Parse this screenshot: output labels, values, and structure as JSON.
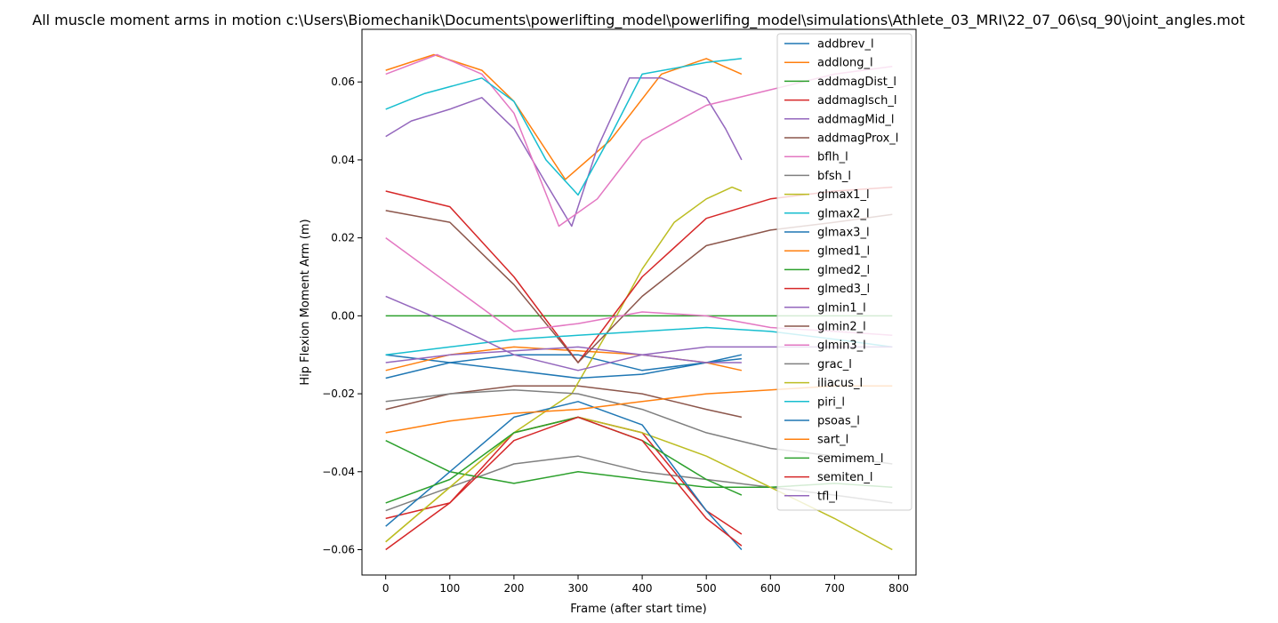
{
  "chart_data": {
    "type": "line",
    "title": "All muscle moment arms in motion c:\\Users\\Biomechanik\\Documents\\powerlifting_model\\powerlifing_model\\simulations\\Athlete_03_MRI\\22_07_06\\sq_90\\joint_angles.mot",
    "xlabel": "Frame (after start time)",
    "ylabel": "Hip Flexion Moment Arm (m)",
    "xlim": [
      -37,
      827
    ],
    "ylim": [
      -0.0665,
      0.0735
    ],
    "x_ticks": [
      "0",
      "100",
      "200",
      "300",
      "400",
      "500",
      "600",
      "700",
      "800"
    ],
    "y_ticks": [
      "−0.06",
      "−0.04",
      "−0.02",
      "0.00",
      "0.02",
      "0.04",
      "0.06"
    ],
    "legend_position": "upper-right",
    "series": [
      {
        "name": "addbrev_l",
        "color": "#1f77b4",
        "x": [
          0,
          100,
          200,
          300,
          400,
          500,
          555
        ],
        "y": [
          -0.016,
          -0.012,
          -0.01,
          -0.01,
          -0.014,
          -0.012,
          -0.011
        ]
      },
      {
        "name": "addlong_l",
        "color": "#ff7f0e",
        "x": [
          0,
          75,
          150,
          200,
          280,
          350,
          430,
          500,
          555
        ],
        "y": [
          0.063,
          0.067,
          0.063,
          0.055,
          0.035,
          0.045,
          0.062,
          0.066,
          0.062
        ]
      },
      {
        "name": "addmagDist_l",
        "color": "#2ca02c",
        "x": [
          0,
          790
        ],
        "y": [
          0.0,
          0.0
        ]
      },
      {
        "name": "addmagIsch_l",
        "color": "#d62728",
        "x": [
          0,
          100,
          200,
          300,
          400,
          500,
          555
        ],
        "y": [
          -0.052,
          -0.048,
          -0.03,
          -0.026,
          -0.03,
          -0.05,
          -0.056
        ]
      },
      {
        "name": "addmagMid_l",
        "color": "#9467bd",
        "x": [
          0,
          40,
          100,
          150,
          200,
          250,
          290,
          330,
          380,
          430,
          500,
          530,
          555
        ],
        "y": [
          0.046,
          0.05,
          0.053,
          0.056,
          0.048,
          0.034,
          0.023,
          0.043,
          0.061,
          0.061,
          0.056,
          0.048,
          0.04
        ]
      },
      {
        "name": "addmagProx_l",
        "color": "#8c564b",
        "x": [
          0,
          100,
          200,
          300,
          400,
          500,
          555
        ],
        "y": [
          -0.024,
          -0.02,
          -0.018,
          -0.018,
          -0.02,
          -0.024,
          -0.026
        ]
      },
      {
        "name": "bflh_l",
        "color": "#e377c2",
        "x": [
          0,
          80,
          150,
          200,
          270,
          330,
          400,
          500,
          600,
          700,
          790
        ],
        "y": [
          0.062,
          0.067,
          0.062,
          0.052,
          0.023,
          0.03,
          0.045,
          0.054,
          0.058,
          0.062,
          0.064
        ]
      },
      {
        "name": "bfsh_l",
        "color": "#7f7f7f",
        "x": [
          0,
          100,
          200,
          300,
          400,
          500,
          600,
          700,
          790
        ],
        "y": [
          -0.05,
          -0.044,
          -0.038,
          -0.036,
          -0.04,
          -0.042,
          -0.044,
          -0.046,
          -0.048
        ]
      },
      {
        "name": "glmax1_l",
        "color": "#bcbd22",
        "x": [
          0,
          100,
          200,
          290,
          350,
          400,
          450,
          500,
          540,
          555
        ],
        "y": [
          -0.058,
          -0.044,
          -0.03,
          -0.02,
          -0.003,
          0.012,
          0.024,
          0.03,
          0.033,
          0.032
        ]
      },
      {
        "name": "glmax2_l",
        "color": "#17becf",
        "x": [
          0,
          60,
          150,
          200,
          250,
          300,
          350,
          400,
          500,
          555
        ],
        "y": [
          0.053,
          0.057,
          0.061,
          0.055,
          0.04,
          0.031,
          0.046,
          0.062,
          0.065,
          0.066
        ]
      },
      {
        "name": "glmax3_l",
        "color": "#1f77b4",
        "x": [
          0,
          100,
          200,
          300,
          400,
          500,
          555
        ],
        "y": [
          -0.01,
          -0.012,
          -0.014,
          -0.016,
          -0.015,
          -0.012,
          -0.01
        ]
      },
      {
        "name": "glmed1_l",
        "color": "#ff7f0e",
        "x": [
          0,
          100,
          200,
          300,
          400,
          500,
          555
        ],
        "y": [
          -0.014,
          -0.01,
          -0.008,
          -0.009,
          -0.01,
          -0.012,
          -0.014
        ]
      },
      {
        "name": "glmed2_l",
        "color": "#2ca02c",
        "x": [
          0,
          100,
          200,
          300,
          400,
          500,
          600,
          700,
          790
        ],
        "y": [
          -0.032,
          -0.04,
          -0.043,
          -0.04,
          -0.042,
          -0.044,
          -0.044,
          -0.043,
          -0.044
        ]
      },
      {
        "name": "glmed3_l",
        "color": "#d62728",
        "x": [
          0,
          100,
          200,
          300,
          400,
          500,
          600,
          700,
          790
        ],
        "y": [
          0.032,
          0.028,
          0.01,
          -0.012,
          0.01,
          0.025,
          0.03,
          0.032,
          0.033
        ]
      },
      {
        "name": "glmin1_l",
        "color": "#9467bd",
        "x": [
          0,
          100,
          200,
          300,
          400,
          500,
          555
        ],
        "y": [
          -0.012,
          -0.01,
          -0.009,
          -0.008,
          -0.01,
          -0.012,
          -0.012
        ]
      },
      {
        "name": "glmin2_l",
        "color": "#8c564b",
        "x": [
          0,
          100,
          200,
          300,
          400,
          500,
          600,
          700,
          790
        ],
        "y": [
          0.027,
          0.024,
          0.008,
          -0.012,
          0.005,
          0.018,
          0.022,
          0.024,
          0.026
        ]
      },
      {
        "name": "glmin3_l",
        "color": "#e377c2",
        "x": [
          0,
          100,
          200,
          300,
          400,
          500,
          600,
          700,
          790
        ],
        "y": [
          0.02,
          0.008,
          -0.004,
          -0.002,
          0.001,
          0.0,
          -0.003,
          -0.004,
          -0.005
        ]
      },
      {
        "name": "grac_l",
        "color": "#7f7f7f",
        "x": [
          0,
          100,
          200,
          300,
          400,
          500,
          600,
          700,
          790
        ],
        "y": [
          -0.022,
          -0.02,
          -0.019,
          -0.02,
          -0.024,
          -0.03,
          -0.034,
          -0.036,
          -0.038
        ]
      },
      {
        "name": "iliacus_l",
        "color": "#bcbd22",
        "x": [
          0,
          100,
          200,
          300,
          400,
          500,
          600,
          700,
          790
        ],
        "y": [
          -0.058,
          -0.044,
          -0.03,
          -0.026,
          -0.03,
          -0.036,
          -0.044,
          -0.052,
          -0.06
        ]
      },
      {
        "name": "piri_l",
        "color": "#17becf",
        "x": [
          0,
          100,
          200,
          300,
          400,
          500,
          600,
          700,
          790
        ],
        "y": [
          -0.01,
          -0.008,
          -0.006,
          -0.005,
          -0.004,
          -0.003,
          -0.004,
          -0.006,
          -0.008
        ]
      },
      {
        "name": "psoas_l",
        "color": "#1f77b4",
        "x": [
          0,
          100,
          200,
          300,
          400,
          500,
          555
        ],
        "y": [
          -0.054,
          -0.04,
          -0.026,
          -0.022,
          -0.028,
          -0.05,
          -0.06
        ]
      },
      {
        "name": "sart_l",
        "color": "#ff7f0e",
        "x": [
          0,
          100,
          200,
          300,
          400,
          500,
          600,
          700,
          790
        ],
        "y": [
          -0.03,
          -0.027,
          -0.025,
          -0.024,
          -0.022,
          -0.02,
          -0.019,
          -0.018,
          -0.018
        ]
      },
      {
        "name": "semimem_l",
        "color": "#2ca02c",
        "x": [
          0,
          100,
          200,
          300,
          400,
          500,
          555
        ],
        "y": [
          -0.048,
          -0.042,
          -0.03,
          -0.026,
          -0.032,
          -0.042,
          -0.046
        ]
      },
      {
        "name": "semiten_l",
        "color": "#d62728",
        "x": [
          0,
          100,
          200,
          300,
          400,
          500,
          555
        ],
        "y": [
          -0.06,
          -0.048,
          -0.032,
          -0.026,
          -0.032,
          -0.052,
          -0.059
        ]
      },
      {
        "name": "tfl_l",
        "color": "#9467bd",
        "x": [
          0,
          100,
          200,
          300,
          400,
          500,
          600,
          700,
          790
        ],
        "y": [
          0.005,
          -0.002,
          -0.01,
          -0.014,
          -0.01,
          -0.008,
          -0.008,
          -0.008,
          -0.008
        ]
      }
    ]
  }
}
